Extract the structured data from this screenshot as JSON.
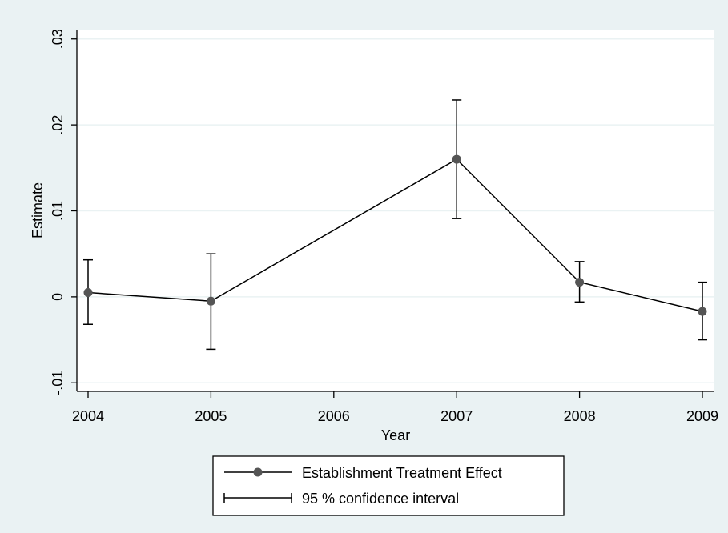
{
  "chart_data": {
    "type": "line",
    "title": "",
    "xlabel": "Year",
    "ylabel": "Estimate",
    "x": [
      2004,
      2005,
      2007,
      2008,
      2009
    ],
    "xticks": [
      2004,
      2005,
      2006,
      2007,
      2008,
      2009
    ],
    "xlim": [
      2004,
      2009
    ],
    "yticks": [
      -0.01,
      0,
      0.01,
      0.02,
      0.03
    ],
    "ytick_labels": [
      "-.01",
      "0",
      ".01",
      ".02",
      ".03"
    ],
    "ylim": [
      -0.011,
      0.031
    ],
    "grid": "horizontal",
    "legend_position": "bottom",
    "series": [
      {
        "name": "Establishment Treatment Effect",
        "values": [
          0.0005,
          -0.0005,
          0.016,
          0.0017,
          -0.0017
        ],
        "ci_lower": [
          -0.0032,
          -0.0061,
          0.0091,
          -0.0006,
          -0.005
        ],
        "ci_upper": [
          0.0043,
          0.005,
          0.0229,
          0.0041,
          0.0017
        ]
      }
    ],
    "legend": {
      "estimate_label": "Establishment Treatment Effect",
      "ci_label": "95 % confidence interval"
    },
    "colors": {
      "background": "#eaf2f3",
      "plot_area": "#ffffff",
      "gridline": "#eaf2f3",
      "line": "#000000",
      "marker": "#555555"
    }
  }
}
